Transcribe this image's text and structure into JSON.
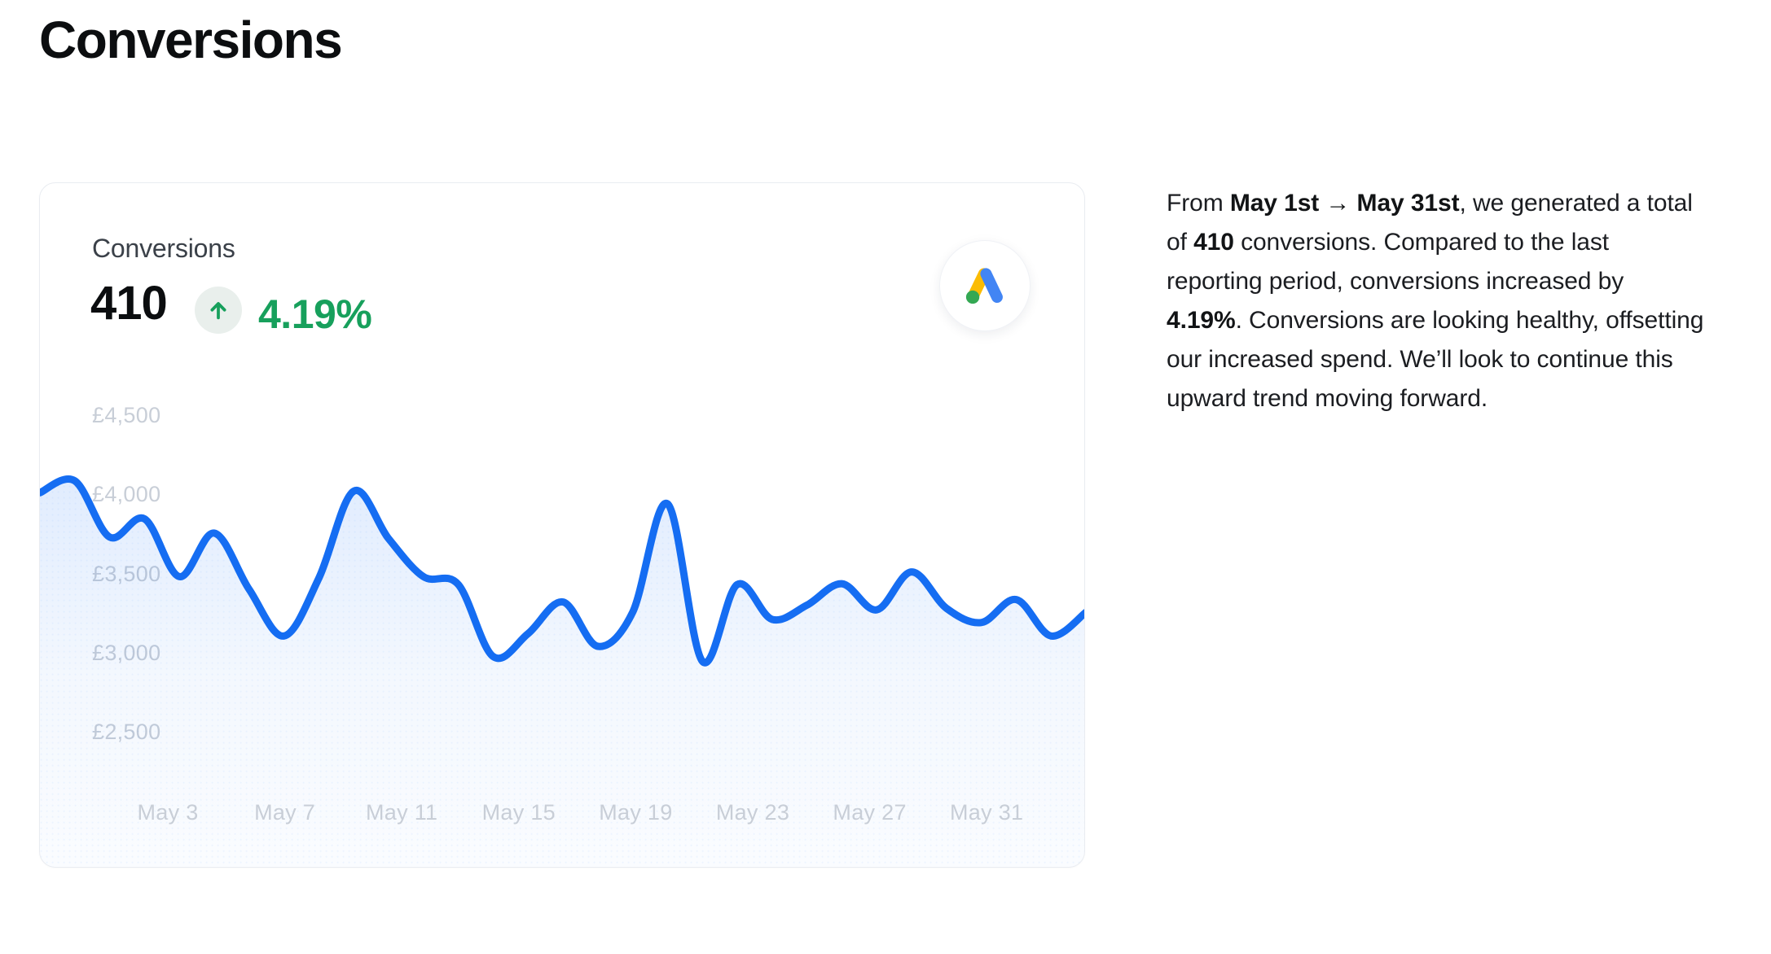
{
  "page": {
    "title": "Conversions"
  },
  "colors": {
    "accent": "#156df2",
    "green": "#17a05c",
    "badge_bg": "#e9efec",
    "tick_label": "#c8ced7",
    "google": {
      "blue": "#4285F4",
      "yellow": "#FBBC04",
      "green": "#34A853"
    }
  },
  "card": {
    "title": "Conversions",
    "metric_value": "410",
    "delta_direction": "up",
    "delta_pct": "4.19%",
    "provider": "Google Ads"
  },
  "summary": {
    "segments": [
      {
        "text": "From ",
        "bold": false
      },
      {
        "text": "May 1st → May 31st",
        "bold": true
      },
      {
        "text": ", we generated a total of ",
        "bold": false
      },
      {
        "text": "410",
        "bold": true
      },
      {
        "text": " conversions. Compared to the last reporting period, conversions increased by ",
        "bold": false
      },
      {
        "text": "4.19%",
        "bold": true
      },
      {
        "text": ". Conversions are looking healthy, offsetting our increased spend. We’ll look to continue this upward trend moving forward.",
        "bold": false
      }
    ]
  },
  "chart_data": {
    "type": "line",
    "title": "Conversions",
    "currency_prefix": "£",
    "x_range": [
      "May 1",
      "May 31"
    ],
    "days": [
      1,
      2,
      3,
      4,
      5,
      6,
      7,
      8,
      9,
      10,
      11,
      12,
      13,
      14,
      15,
      16,
      17,
      18,
      19,
      20,
      21,
      22,
      23,
      24,
      25,
      26,
      27,
      28,
      29,
      30,
      31
    ],
    "values": [
      4010,
      4085,
      3730,
      3845,
      3480,
      3755,
      3400,
      3105,
      3470,
      4020,
      3720,
      3480,
      3430,
      2975,
      3120,
      3320,
      3040,
      3255,
      3940,
      2945,
      3430,
      3210,
      3300,
      3435,
      3270,
      3510,
      3280,
      3190,
      3335,
      3105,
      3255
    ],
    "yticks": [
      4500,
      4000,
      3500,
      3000,
      2500
    ],
    "ytick_labels": [
      "£4,500",
      "£4,000",
      "£3,500",
      "£3,000",
      "£2,500"
    ],
    "xtick_days": [
      3,
      7,
      11,
      15,
      19,
      23,
      27,
      31
    ],
    "xtick_labels": [
      "May 3",
      "May 7",
      "May 11",
      "May 15",
      "May 19",
      "May 23",
      "May 27",
      "May 31"
    ],
    "grid": false,
    "legend": false,
    "line_color": "#156df2",
    "area_fill": "gradient-light-blue"
  }
}
